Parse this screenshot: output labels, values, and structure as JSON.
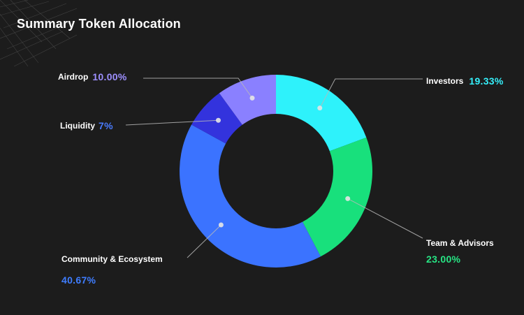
{
  "title": "Summary Token Allocation",
  "chart_data": {
    "type": "pie",
    "variant": "donut",
    "title": "Summary Token Allocation",
    "slices": [
      {
        "key": "investors",
        "label": "Investors",
        "value": 19.33,
        "value_label": "19.33%",
        "color": "#2ef2fb",
        "label_color": "#35f0fb"
      },
      {
        "key": "team",
        "label": "Team & Advisors",
        "value": 23.0,
        "value_label": "23.00%",
        "color": "#18e07c",
        "label_color": "#27e584"
      },
      {
        "key": "community",
        "label": "Community & Ecosystem",
        "value": 40.67,
        "value_label": "40.67%",
        "color": "#3b73ff",
        "label_color": "#3f7dff"
      },
      {
        "key": "liquidity",
        "label": "Liquidity",
        "value": 7,
        "value_label": "7%",
        "color": "#3333dd",
        "label_color": "#4a7cff"
      },
      {
        "key": "airdrop",
        "label": "Airdrop",
        "value": 10.0,
        "value_label": "10.00%",
        "color": "#8a80ff",
        "label_color": "#9d8fff"
      }
    ],
    "start": "top (12 o'clock)",
    "direction": "clockwise",
    "legend": "callout labels with leader lines",
    "background_color": "#1c1c1c"
  }
}
